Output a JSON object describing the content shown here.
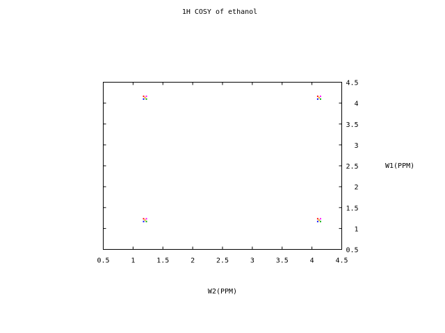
{
  "chart_data": {
    "type": "scatter",
    "title": "1H COSY of ethanol",
    "xlabel": "W2(PPM)",
    "ylabel": "W1(PPM)",
    "xlim": [
      0.5,
      4.5
    ],
    "ylim": [
      0.5,
      4.5
    ],
    "x_ticks": [
      "0.5",
      "1",
      "1.5",
      "2",
      "2.5",
      "3",
      "3.5",
      "4",
      "4.5"
    ],
    "y_ticks": [
      "0.5",
      "1",
      "1.5",
      "2",
      "2.5",
      "3",
      "3.5",
      "4",
      "4.5"
    ],
    "grid": false,
    "y_axis_side": "right",
    "peaks": [
      {
        "x": 1.2,
        "y": 4.13
      },
      {
        "x": 4.12,
        "y": 4.13
      },
      {
        "x": 1.2,
        "y": 1.2
      },
      {
        "x": 4.12,
        "y": 1.2
      }
    ],
    "peak_colors": [
      "#ff0000",
      "#ff00ff",
      "#0000ff",
      "#00aa00",
      "#ffaa00"
    ]
  }
}
